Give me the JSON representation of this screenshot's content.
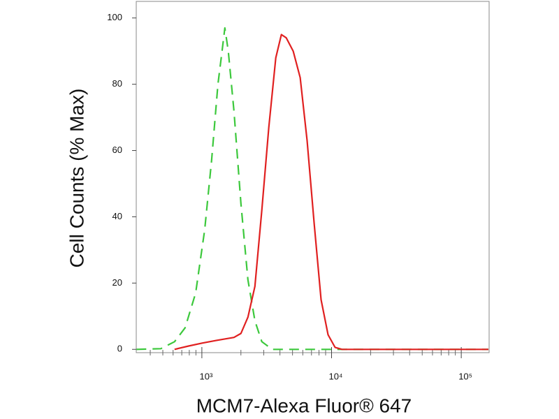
{
  "chart_data": {
    "type": "line",
    "xlabel": "MCM7-Alexa Fluor® 647",
    "ylabel": "Cell Counts (% Max)",
    "xscale": "log",
    "xlim": [
      312,
      164000
    ],
    "ylim": [
      -1,
      105
    ],
    "xticks": [
      {
        "value": 1000,
        "label": "10³"
      },
      {
        "value": 10000,
        "label": "10⁴"
      },
      {
        "value": 100000,
        "label": "10⁵"
      }
    ],
    "xminorticks": [
      400,
      500,
      600,
      700,
      800,
      900,
      2000,
      3000,
      4000,
      5000,
      6000,
      7000,
      8000,
      9000,
      20000,
      30000,
      40000,
      50000,
      60000,
      70000,
      80000,
      90000
    ],
    "yticks": [
      0,
      20,
      40,
      60,
      80,
      100
    ],
    "series": [
      {
        "color": "#3cc83c",
        "dash": true,
        "x": [
          313,
          482,
          616,
          743,
          895,
          1051,
          1189,
          1330,
          1432,
          1504,
          1599,
          1767,
          2000,
          2265,
          2564,
          2900,
          3490,
          10640,
          162000
        ],
        "values": [
          0,
          0.2,
          2.3,
          6.5,
          17,
          36,
          57,
          80,
          90,
          97,
          90,
          72,
          44,
          21,
          8.6,
          2.3,
          0,
          0,
          0
        ]
      },
      {
        "color": "#e02020",
        "dash": false,
        "x": [
          616,
          790,
          1012,
          1297,
          1767,
          2000,
          2265,
          2564,
          2900,
          3281,
          3715,
          4103,
          4475,
          5060,
          5730,
          6480,
          7340,
          8300,
          9400,
          10640,
          12050,
          162000
        ],
        "values": [
          0,
          1,
          1.9,
          2.7,
          3.6,
          4.8,
          9.7,
          19,
          42,
          67,
          88,
          95,
          94,
          90,
          82,
          63,
          38,
          15,
          4.4,
          0.6,
          0,
          0
        ]
      }
    ]
  }
}
